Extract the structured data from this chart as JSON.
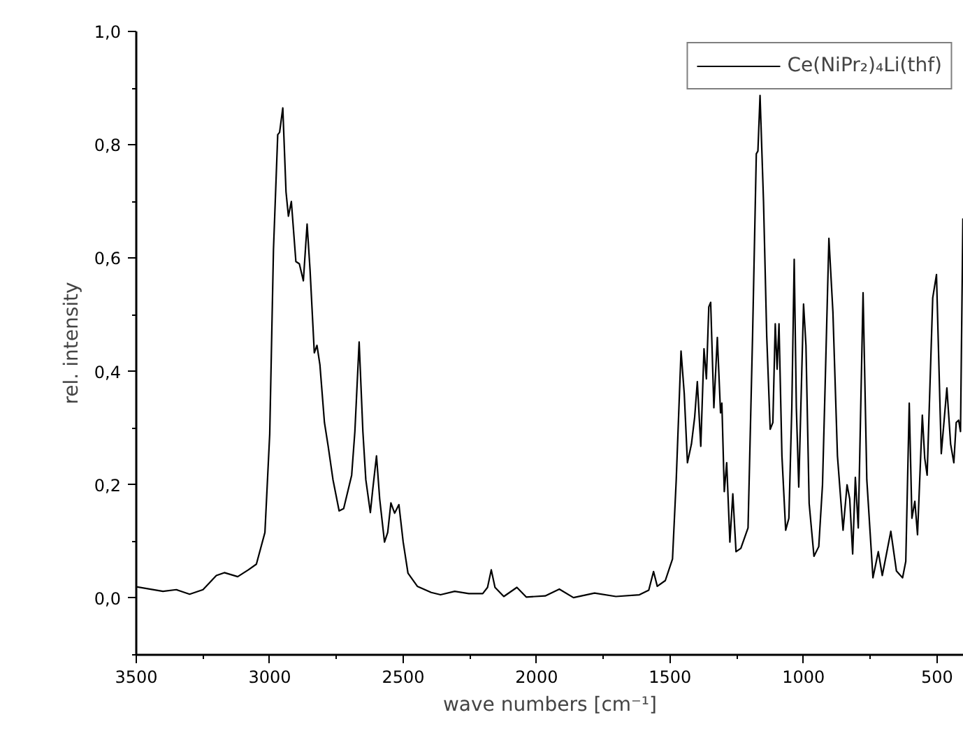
{
  "chart_data": {
    "type": "line",
    "xlabel": "wave numbers [cm⁻¹]",
    "ylabel": "rel. intensity",
    "xlim": [
      3500,
      400
    ],
    "ylim": [
      -0.1,
      1.0
    ],
    "xticks": [
      3500,
      3000,
      2500,
      2000,
      1500,
      1000,
      500
    ],
    "yticks": [
      {
        "value": 0.0,
        "label": "0,0"
      },
      {
        "value": 0.2,
        "label": "0,2"
      },
      {
        "value": 0.4,
        "label": "0,4"
      },
      {
        "value": 0.6,
        "label": "0,6"
      },
      {
        "value": 0.8,
        "label": "0,8"
      },
      {
        "value": 1.0,
        "label": "1,0"
      }
    ],
    "grid": false,
    "legend": "top right",
    "marker": "none",
    "line_style": "solid",
    "series": [
      {
        "name": "Ce(NiPr₂)₄Li(thf)",
        "color": "#000000",
        "x": [
          3500,
          3400,
          3350,
          3300,
          3250,
          3200,
          3170,
          3120,
          3080,
          3050,
          3018,
          3000,
          2986,
          2970,
          2963,
          2951,
          2939,
          2930,
          2919,
          2902,
          2889,
          2874,
          2860,
          2849,
          2833,
          2823,
          2812,
          2795,
          2781,
          2763,
          2740,
          2723,
          2693,
          2681,
          2665,
          2651,
          2640,
          2623,
          2614,
          2600,
          2588,
          2570,
          2558,
          2546,
          2532,
          2516,
          2500,
          2482,
          2447,
          2395,
          2360,
          2307,
          2254,
          2202,
          2184,
          2170,
          2156,
          2123,
          2074,
          2039,
          1968,
          1915,
          1862,
          1783,
          1703,
          1615,
          1580,
          1562,
          1548,
          1518,
          1491,
          1477,
          1459,
          1447,
          1435,
          1420,
          1408,
          1398,
          1385,
          1373,
          1364,
          1355,
          1348,
          1336,
          1323,
          1311,
          1306,
          1297,
          1288,
          1276,
          1265,
          1253,
          1235,
          1208,
          1191,
          1177,
          1171,
          1163,
          1150,
          1138,
          1125,
          1115,
          1106,
          1099,
          1092,
          1081,
          1067,
          1055,
          1044,
          1035,
          1027,
          1018,
          1000,
          991,
          979,
          961,
          943,
          929,
          919,
          905,
          890,
          873,
          852,
          837,
          827,
          816,
          806,
          795,
          777,
          763,
          740,
          720,
          705,
          673,
          652,
          629,
          617,
          604,
          594,
          583,
          573,
          555,
          546,
          537,
          516,
          502,
          484,
          463,
          449,
          437,
          428,
          419,
          412,
          403
        ],
        "values": [
          0.02,
          0.012,
          0.015,
          0.007,
          0.015,
          0.04,
          0.045,
          0.038,
          0.05,
          0.06,
          0.116,
          0.29,
          0.615,
          0.818,
          0.822,
          0.865,
          0.717,
          0.674,
          0.7,
          0.594,
          0.59,
          0.56,
          0.66,
          0.58,
          0.433,
          0.446,
          0.412,
          0.31,
          0.268,
          0.209,
          0.154,
          0.158,
          0.217,
          0.294,
          0.452,
          0.294,
          0.209,
          0.151,
          0.192,
          0.251,
          0.175,
          0.099,
          0.116,
          0.168,
          0.15,
          0.165,
          0.099,
          0.044,
          0.021,
          0.01,
          0.006,
          0.012,
          0.008,
          0.008,
          0.019,
          0.05,
          0.019,
          0.003,
          0.019,
          0.002,
          0.004,
          0.016,
          0.001,
          0.009,
          0.003,
          0.006,
          0.014,
          0.047,
          0.021,
          0.031,
          0.069,
          0.209,
          0.436,
          0.361,
          0.239,
          0.272,
          0.319,
          0.382,
          0.268,
          0.44,
          0.387,
          0.514,
          0.522,
          0.336,
          0.46,
          0.327,
          0.344,
          0.188,
          0.239,
          0.099,
          0.184,
          0.082,
          0.088,
          0.124,
          0.463,
          0.784,
          0.789,
          0.887,
          0.7,
          0.463,
          0.298,
          0.31,
          0.484,
          0.404,
          0.484,
          0.251,
          0.12,
          0.141,
          0.336,
          0.598,
          0.336,
          0.196,
          0.519,
          0.446,
          0.167,
          0.074,
          0.091,
          0.2,
          0.378,
          0.635,
          0.505,
          0.251,
          0.12,
          0.2,
          0.175,
          0.078,
          0.213,
          0.124,
          0.539,
          0.209,
          0.036,
          0.082,
          0.04,
          0.118,
          0.048,
          0.036,
          0.065,
          0.344,
          0.141,
          0.171,
          0.112,
          0.323,
          0.247,
          0.217,
          0.53,
          0.571,
          0.255,
          0.371,
          0.272,
          0.239,
          0.31,
          0.314,
          0.294,
          0.67
        ]
      }
    ]
  }
}
